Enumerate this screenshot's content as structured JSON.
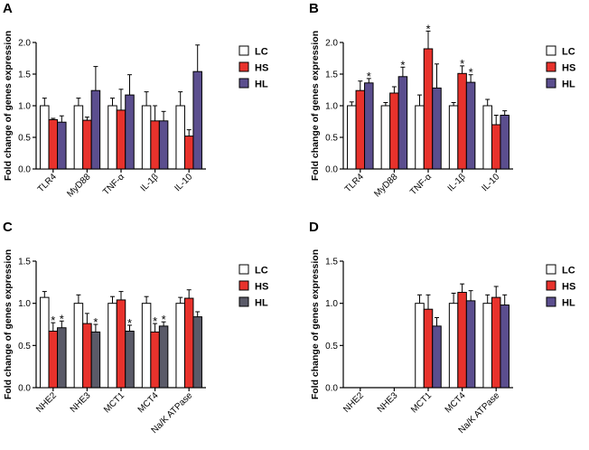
{
  "colors": {
    "LC": "#ffffff",
    "HS": "#e8322c",
    "HL_a": "#5b4e8e",
    "HL_c": "#5a5a68"
  },
  "chart_data": [
    {
      "panel": "A",
      "type": "bar",
      "ylabel": "Fold change of genes expression",
      "ylim": [
        0,
        2.0
      ],
      "yticks": [
        "0.0",
        "0.5",
        "1.0",
        "1.5",
        "2.0"
      ],
      "categories": [
        "TLR4",
        "MyD88",
        "TNF-α",
        "IL-1β",
        "IL-10"
      ],
      "legend": [
        "LC",
        "HS",
        "HL"
      ],
      "series": [
        {
          "name": "LC",
          "values": [
            1.0,
            1.0,
            1.0,
            1.0,
            1.0
          ],
          "errors": [
            0.12,
            0.12,
            0.12,
            0.22,
            0.22
          ],
          "stars": [
            0,
            0,
            0,
            0,
            0
          ]
        },
        {
          "name": "HS",
          "values": [
            0.78,
            0.77,
            0.93,
            0.76,
            0.52
          ],
          "errors": [
            0.02,
            0.05,
            0.33,
            0.24,
            0.1
          ],
          "stars": [
            0,
            0,
            0,
            0,
            0
          ]
        },
        {
          "name": "HL",
          "values": [
            0.74,
            1.24,
            1.17,
            0.76,
            1.54
          ],
          "errors": [
            0.1,
            0.38,
            0.32,
            0.15,
            0.42
          ],
          "stars": [
            0,
            0,
            0,
            0,
            0
          ]
        }
      ]
    },
    {
      "panel": "B",
      "type": "bar",
      "ylabel": "Fold change of genes expression",
      "ylim": [
        0,
        2.0
      ],
      "yticks": [
        "0.0",
        "0.5",
        "1.0",
        "1.5",
        "2.0"
      ],
      "categories": [
        "TLR4",
        "MyD88",
        "TNF-α",
        "IL-1β",
        "IL-10"
      ],
      "legend": [
        "LC",
        "HS",
        "HL"
      ],
      "series": [
        {
          "name": "LC",
          "values": [
            1.0,
            1.0,
            1.0,
            1.0,
            1.0
          ],
          "errors": [
            0.06,
            0.05,
            0.17,
            0.05,
            0.1
          ],
          "stars": [
            0,
            0,
            0,
            0,
            0
          ]
        },
        {
          "name": "HS",
          "values": [
            1.24,
            1.2,
            1.9,
            1.51,
            0.7
          ],
          "errors": [
            0.15,
            0.1,
            0.28,
            0.12,
            0.15
          ],
          "stars": [
            0,
            0,
            1,
            1,
            0
          ]
        },
        {
          "name": "HL",
          "values": [
            1.36,
            1.46,
            1.28,
            1.37,
            0.85
          ],
          "errors": [
            0.07,
            0.15,
            0.38,
            0.12,
            0.07
          ],
          "stars": [
            1,
            1,
            0,
            1,
            0
          ]
        }
      ]
    },
    {
      "panel": "C",
      "type": "bar",
      "ylabel": "Fold change of genes expression",
      "ylim": [
        0,
        1.5
      ],
      "yticks": [
        "0.0",
        "0.5",
        "1.0",
        "1.5"
      ],
      "categories": [
        "NHE2",
        "NHE3",
        "MCT1",
        "MCT4",
        "Na/K ATPase"
      ],
      "legend": [
        "LC",
        "HS",
        "HL"
      ],
      "series": [
        {
          "name": "LC",
          "values": [
            1.07,
            1.0,
            1.0,
            1.0,
            1.0
          ],
          "errors": [
            0.07,
            0.1,
            0.08,
            0.08,
            0.07
          ],
          "stars": [
            0,
            0,
            0,
            0,
            0
          ]
        },
        {
          "name": "HS",
          "values": [
            0.67,
            0.76,
            1.04,
            0.66,
            1.06
          ],
          "errors": [
            0.1,
            0.12,
            0.1,
            0.1,
            0.1
          ],
          "stars": [
            1,
            0,
            0,
            1,
            0
          ]
        },
        {
          "name": "HL",
          "values": [
            0.71,
            0.66,
            0.67,
            0.73,
            0.84
          ],
          "errors": [
            0.08,
            0.09,
            0.07,
            0.05,
            0.06
          ],
          "stars": [
            1,
            1,
            1,
            1,
            0
          ]
        }
      ]
    },
    {
      "panel": "D",
      "type": "bar",
      "ylabel": "Fold change of genes expression",
      "ylim": [
        0,
        1.5
      ],
      "yticks": [
        "0.0",
        "0.5",
        "1.0",
        "1.5"
      ],
      "categories": [
        "NHE2",
        "NHE3",
        "MCT1",
        "MCT4",
        "Na/K ATPase"
      ],
      "legend": [
        "LC",
        "HS",
        "HL"
      ],
      "series": [
        {
          "name": "LC",
          "values": [
            0,
            0,
            1.0,
            1.0,
            1.0
          ],
          "errors": [
            0,
            0,
            0.1,
            0.12,
            0.1
          ],
          "stars": [
            0,
            0,
            0,
            0,
            0
          ]
        },
        {
          "name": "HS",
          "values": [
            0,
            0,
            0.93,
            1.13,
            1.07
          ],
          "errors": [
            0,
            0,
            0.17,
            0.1,
            0.13
          ],
          "stars": [
            0,
            0,
            0,
            0,
            0
          ]
        },
        {
          "name": "HL",
          "values": [
            0,
            0,
            0.73,
            1.03,
            0.98
          ],
          "errors": [
            0,
            0,
            0.1,
            0.12,
            0.12
          ],
          "stars": [
            0,
            0,
            0,
            0,
            0
          ]
        }
      ]
    }
  ]
}
